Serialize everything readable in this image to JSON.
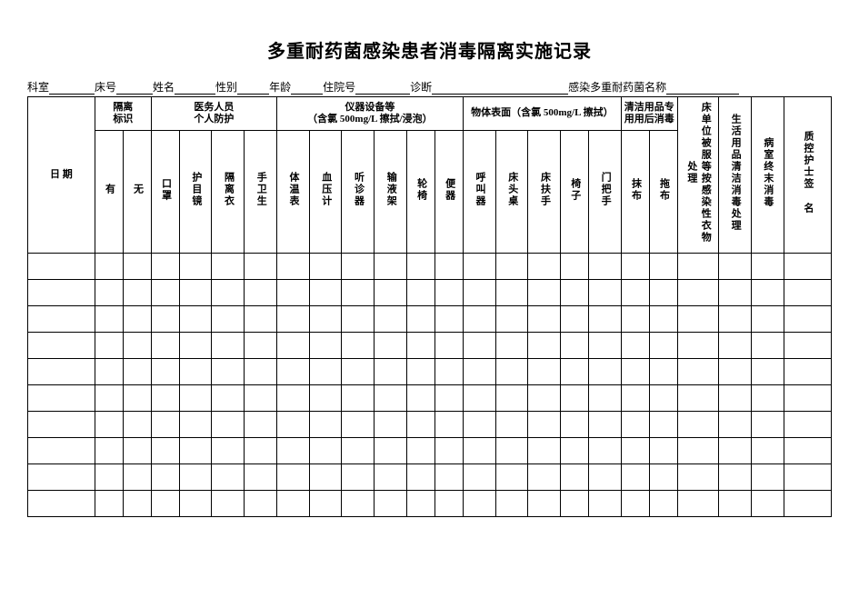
{
  "title": "多重耐药菌感染患者消毒隔离实施记录",
  "info": {
    "dept_label": "科室",
    "bed_label": "床号",
    "name_label": "姓名",
    "sex_label": "性别",
    "age_label": "年龄",
    "hosp_no_label": "住院号",
    "diagnosis_label": "诊断",
    "infection_label": "感染多重耐药菌名称",
    "blank_short": 40,
    "blank_med": 60,
    "blank_long": 150,
    "blank_xl": 90
  },
  "header": {
    "date": "日 期",
    "groups": {
      "g1": "隔离\n标识",
      "g2": "医务人员\n个人防护",
      "g3": "仪器设备等\n（含氯 500mg/L 擦拭/浸泡）",
      "g4": "物体表面（含氯 500mg/L 擦拭）",
      "g5": "清洁用品专\n用用后消毒"
    },
    "sub": {
      "s_you": "有",
      "s_wu": "无",
      "s_kouzhao": "口罩",
      "s_humujing": "护目镜",
      "s_geli_yi": "隔离衣",
      "s_shouweisheng": "手卫生",
      "s_tiwen": "体温表",
      "s_xueya": "血压计",
      "s_ting": "听诊器",
      "s_shuye": "输液架",
      "s_lunyi": "轮椅",
      "s_bianqi": "便器",
      "s_hujiao": "呼叫器",
      "s_chuangtou": "床头桌",
      "s_chuangfushou": "床扶手",
      "s_yizi": "椅子",
      "s_menba": "门把手",
      "s_mobu": "抹布",
      "s_tuobu": "拖布",
      "s_chuangdanwei": "床单位被服等按感染性衣物处理",
      "s_shenghuoyongpin": "生活用品清洁消毒处理",
      "s_bingshi": "病室终末消毒",
      "s_qianming": "质控护士签 名"
    }
  },
  "style": {
    "row_count": 10,
    "border_color": "#000000",
    "bg_color": "#ffffff",
    "title_fontsize": 20,
    "body_fontsize": 11,
    "info_fontsize": 12,
    "col_widths": {
      "date": 62,
      "narrow": 26,
      "wide_last": 44
    }
  }
}
